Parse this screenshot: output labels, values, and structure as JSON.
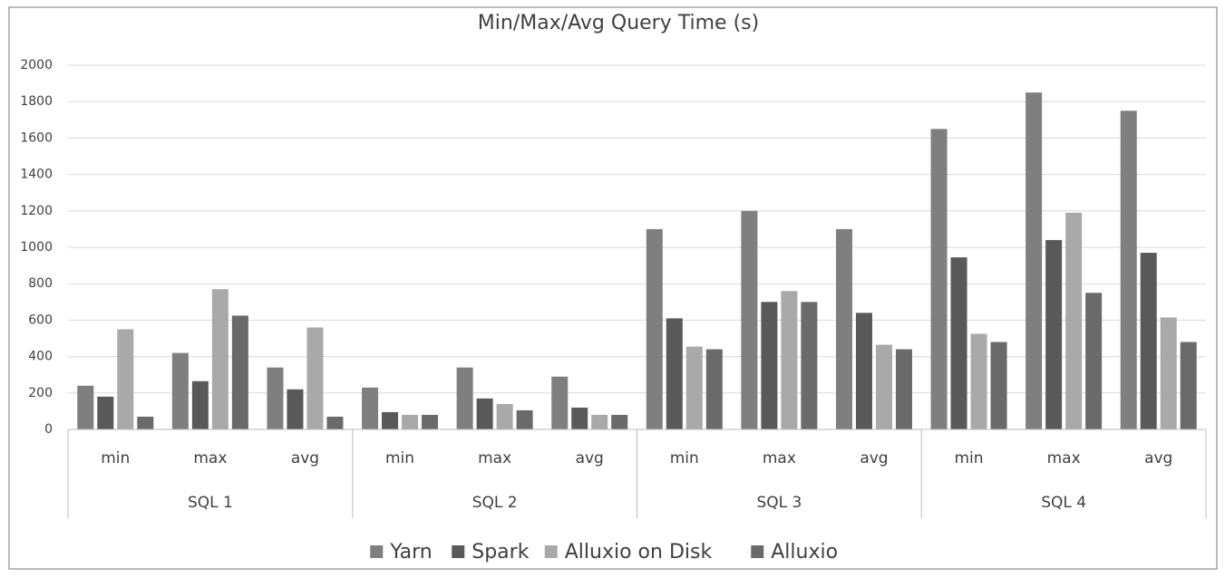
{
  "chart_data": {
    "type": "bar",
    "title": "Min/Max/Avg Query Time (s)",
    "categories": [
      "min",
      "max",
      "avg",
      "min",
      "max",
      "avg",
      "min",
      "max",
      "avg",
      "min",
      "max",
      "avg"
    ],
    "groups": [
      "SQL 1",
      "SQL 2",
      "SQL 3",
      "SQL 4"
    ],
    "series": [
      {
        "name": "Yarn",
        "color": "#7f7f7f",
        "values": [
          240,
          420,
          340,
          230,
          340,
          290,
          1100,
          1200,
          1100,
          1650,
          1850,
          1750
        ]
      },
      {
        "name": "Spark",
        "color": "#595959",
        "values": [
          180,
          265,
          220,
          95,
          170,
          120,
          610,
          700,
          640,
          945,
          1040,
          970
        ]
      },
      {
        "name": "Alluxio on Disk",
        "color": "#a9a9a9",
        "values": [
          550,
          770,
          560,
          80,
          140,
          80,
          455,
          760,
          465,
          525,
          1190,
          615
        ]
      },
      {
        "name": "Alluxio",
        "color": "#6a6a6a",
        "values": [
          70,
          625,
          70,
          80,
          105,
          80,
          440,
          700,
          440,
          480,
          750,
          480
        ]
      }
    ],
    "ylim": [
      0,
      2000
    ],
    "yticks": [
      0,
      200,
      400,
      600,
      800,
      1000,
      1200,
      1400,
      1600,
      1800,
      2000
    ],
    "grid": true,
    "legend": "bottom"
  }
}
